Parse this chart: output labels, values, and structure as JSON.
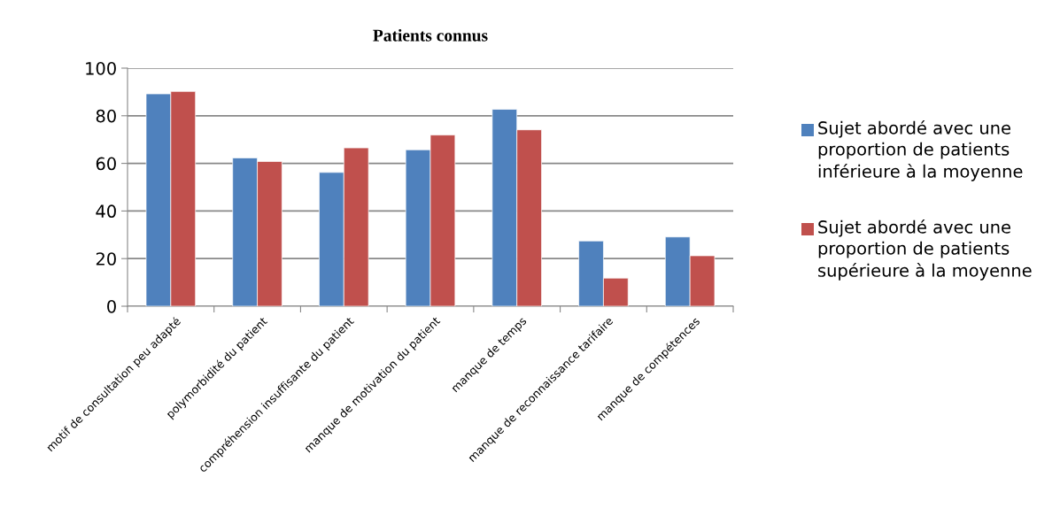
{
  "chart_data": {
    "type": "bar",
    "title": "Patients connus",
    "categories": [
      "motif de consultation peu adapté",
      "polymorbidité du patient",
      "compréhension insuffisante du patient",
      "manque de motivation du patient",
      "manque de temps",
      "manque de reconnaissance tarifaire",
      "manque de compétences"
    ],
    "series": [
      {
        "name": "Sujet abordé avec une proportion de patients inférieure à la moyenne",
        "color": "#4f81bd",
        "values": [
          89.2,
          62.3,
          56.2,
          65.7,
          82.7,
          27.4,
          29.1
        ]
      },
      {
        "name": "Sujet abordé avec une proportion de patients supérieure à la moyenne",
        "color": "#c0504d",
        "values": [
          90.2,
          60.8,
          66.5,
          71.9,
          74.1,
          11.8,
          21.2
        ]
      }
    ],
    "ylim": [
      0,
      100
    ],
    "yticks": [
      0,
      20,
      40,
      60,
      80,
      100
    ],
    "grid": "y",
    "legend": "right"
  }
}
